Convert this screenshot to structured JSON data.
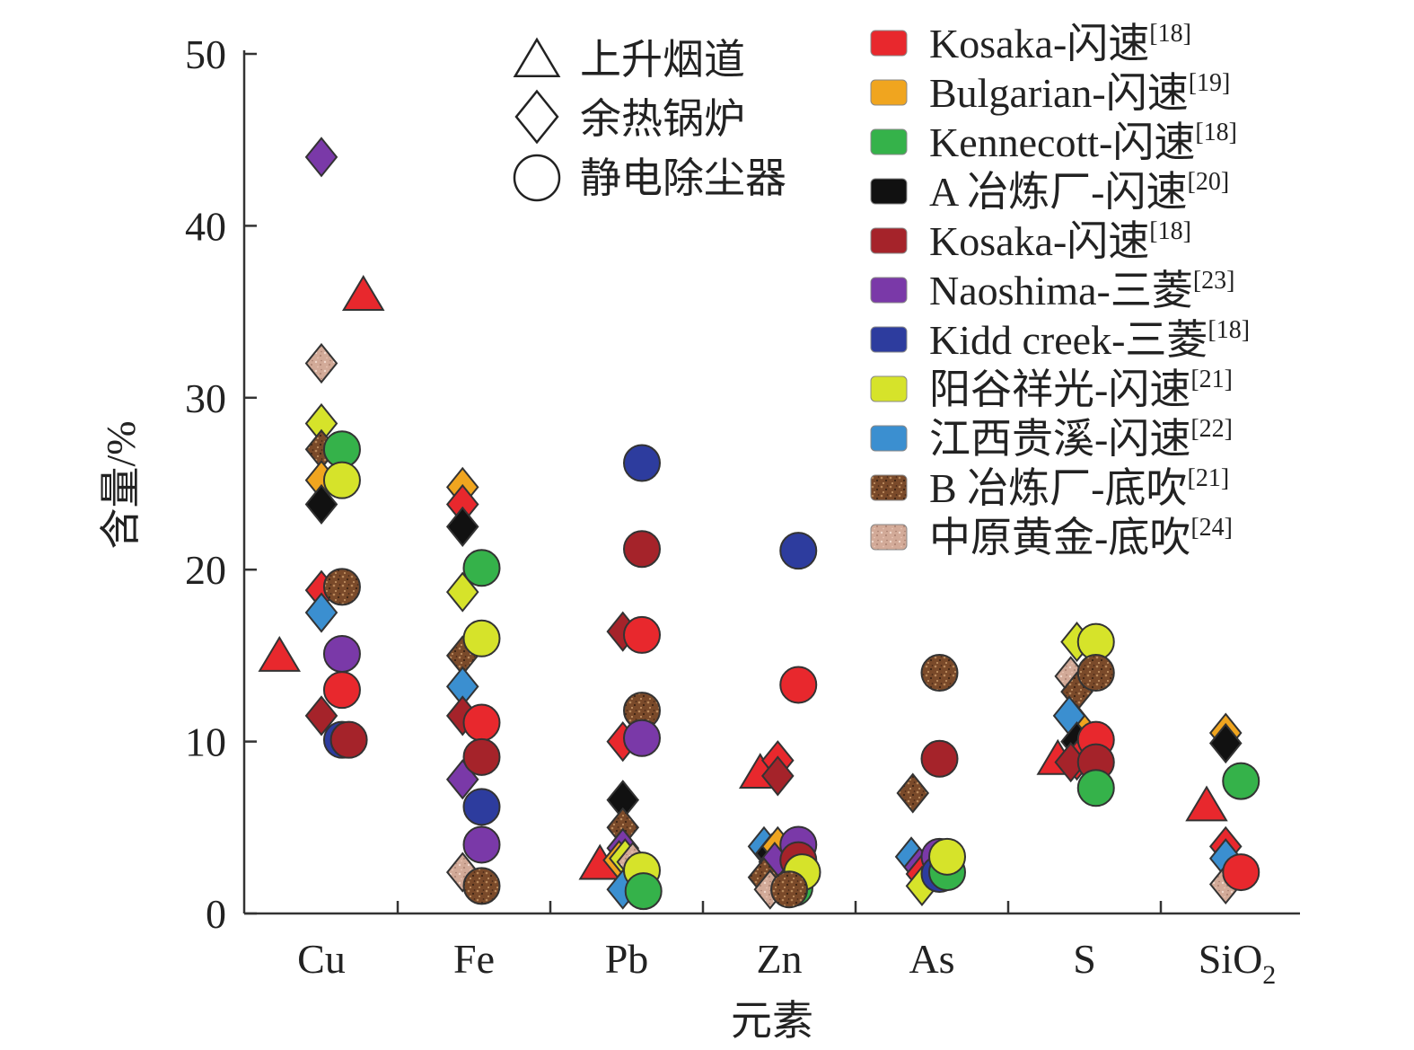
{
  "chart_data": {
    "type": "scatter",
    "title": "",
    "xlabel": "元素",
    "ylabel": "含量/%",
    "ylim": [
      0,
      50
    ],
    "yticks": [
      0,
      10,
      20,
      30,
      40,
      50
    ],
    "categories": [
      {
        "key": "Cu",
        "label": "Cu"
      },
      {
        "key": "Fe",
        "label": "Fe"
      },
      {
        "key": "Pb",
        "label": "Pb"
      },
      {
        "key": "Zn",
        "label": "Zn"
      },
      {
        "key": "As",
        "label": "As"
      },
      {
        "key": "S",
        "label": "S"
      },
      {
        "key": "SiO2",
        "label": "SiO",
        "sub": "2"
      }
    ],
    "shape_legend": [
      {
        "shape": "triangle",
        "label": "上升烟道"
      },
      {
        "shape": "diamond",
        "label": "余热锅炉"
      },
      {
        "shape": "circle",
        "label": "静电除尘器"
      }
    ],
    "series": [
      {
        "name": "Kosaka-闪速",
        "ref": "[18]",
        "color": "#e8282d"
      },
      {
        "name": "Bulgarian-闪速",
        "ref": "[19]",
        "color": "#f0a51f"
      },
      {
        "name": "Kennecott-闪速",
        "ref": "[18]",
        "color": "#35b24a"
      },
      {
        "name": "A 冶炼厂-闪速",
        "ref": "[20]",
        "color": "#111111"
      },
      {
        "name": "Kosaka-闪速",
        "ref": "[18]",
        "color": "#a5232a"
      },
      {
        "name": "Naoshima-三菱",
        "ref": "[23]",
        "color": "#7a39a8"
      },
      {
        "name": "Kidd creek-三菱",
        "ref": "[18]",
        "color": "#2d3c9e"
      },
      {
        "name": "阳谷祥光-闪速",
        "ref": "[21]",
        "color": "#d6e32a"
      },
      {
        "name": "江西贵溪-闪速",
        "ref": "[22]",
        "color": "#3b8fd0"
      },
      {
        "name": "B 冶炼厂-底吹",
        "ref": "[21]",
        "color": "#7a4a2a",
        "pattern": "speckle-brown"
      },
      {
        "name": "中原黄金-底吹",
        "ref": "[24]",
        "color": "#d2aa98",
        "pattern": "speckle-pink"
      }
    ],
    "points": [
      {
        "cat": "Cu",
        "dx": -0.55,
        "y": 15.0,
        "shape": "triangle",
        "s": 0
      },
      {
        "cat": "Cu",
        "dx": 0.55,
        "y": 36.0,
        "shape": "triangle",
        "s": 0
      },
      {
        "cat": "Cu",
        "dx": 0,
        "y": 44.0,
        "shape": "diamond",
        "s": 5
      },
      {
        "cat": "Cu",
        "dx": 0,
        "y": 32.0,
        "shape": "diamond",
        "s": 10
      },
      {
        "cat": "Cu",
        "dx": 0,
        "y": 28.5,
        "shape": "diamond",
        "s": 7
      },
      {
        "cat": "Cu",
        "dx": 0,
        "y": 27.0,
        "shape": "diamond",
        "s": 9
      },
      {
        "cat": "Cu",
        "dx": 0,
        "y": 25.2,
        "shape": "diamond",
        "s": 1
      },
      {
        "cat": "Cu",
        "dx": 0,
        "y": 23.8,
        "shape": "diamond",
        "s": 3
      },
      {
        "cat": "Cu",
        "dx": 0,
        "y": 18.8,
        "shape": "diamond",
        "s": 0
      },
      {
        "cat": "Cu",
        "dx": 0,
        "y": 17.5,
        "shape": "diamond",
        "s": 8
      },
      {
        "cat": "Cu",
        "dx": 0,
        "y": 11.5,
        "shape": "diamond",
        "s": 4
      },
      {
        "cat": "Cu",
        "dx": 0.27,
        "y": 27.0,
        "shape": "circle",
        "s": 2
      },
      {
        "cat": "Cu",
        "dx": 0.27,
        "y": 25.2,
        "shape": "circle",
        "s": 7
      },
      {
        "cat": "Cu",
        "dx": 0.27,
        "y": 19.0,
        "shape": "circle",
        "s": 9
      },
      {
        "cat": "Cu",
        "dx": 0.27,
        "y": 15.1,
        "shape": "circle",
        "s": 5
      },
      {
        "cat": "Cu",
        "dx": 0.27,
        "y": 13.0,
        "shape": "circle",
        "s": 0
      },
      {
        "cat": "Cu",
        "dx": 0.27,
        "y": 10.1,
        "shape": "circle",
        "s": 6
      },
      {
        "cat": "Cu",
        "dx": 0.36,
        "y": 10.1,
        "shape": "circle",
        "s": 4
      },
      {
        "cat": "Fe",
        "dx": -0.15,
        "y": 24.8,
        "shape": "diamond",
        "s": 1
      },
      {
        "cat": "Fe",
        "dx": -0.15,
        "y": 23.8,
        "shape": "diamond",
        "s": 0
      },
      {
        "cat": "Fe",
        "dx": -0.15,
        "y": 22.5,
        "shape": "diamond",
        "s": 3
      },
      {
        "cat": "Fe",
        "dx": -0.15,
        "y": 18.7,
        "shape": "diamond",
        "s": 7
      },
      {
        "cat": "Fe",
        "dx": -0.15,
        "y": 15.0,
        "shape": "diamond",
        "s": 9
      },
      {
        "cat": "Fe",
        "dx": -0.15,
        "y": 13.2,
        "shape": "diamond",
        "s": 8
      },
      {
        "cat": "Fe",
        "dx": -0.15,
        "y": 11.5,
        "shape": "diamond",
        "s": 4
      },
      {
        "cat": "Fe",
        "dx": -0.15,
        "y": 7.8,
        "shape": "diamond",
        "s": 5
      },
      {
        "cat": "Fe",
        "dx": -0.15,
        "y": 2.4,
        "shape": "diamond",
        "s": 10
      },
      {
        "cat": "Fe",
        "dx": 0.1,
        "y": 20.1,
        "shape": "circle",
        "s": 2
      },
      {
        "cat": "Fe",
        "dx": 0.1,
        "y": 16.0,
        "shape": "circle",
        "s": 7
      },
      {
        "cat": "Fe",
        "dx": 0.1,
        "y": 11.1,
        "shape": "circle",
        "s": 0
      },
      {
        "cat": "Fe",
        "dx": 0.1,
        "y": 9.1,
        "shape": "circle",
        "s": 4
      },
      {
        "cat": "Fe",
        "dx": 0.1,
        "y": 6.2,
        "shape": "circle",
        "s": 6
      },
      {
        "cat": "Fe",
        "dx": 0.1,
        "y": 4.0,
        "shape": "circle",
        "s": 5
      },
      {
        "cat": "Fe",
        "dx": 0.1,
        "y": 1.6,
        "shape": "circle",
        "s": 9
      },
      {
        "cat": "Pb",
        "dx": -0.35,
        "y": 2.9,
        "shape": "triangle",
        "s": 0
      },
      {
        "cat": "Pb",
        "dx": -0.05,
        "y": 16.4,
        "shape": "diamond",
        "s": 4
      },
      {
        "cat": "Pb",
        "dx": -0.05,
        "y": 10.0,
        "shape": "diamond",
        "s": 0
      },
      {
        "cat": "Pb",
        "dx": -0.05,
        "y": 6.6,
        "shape": "diamond",
        "s": 3
      },
      {
        "cat": "Pb",
        "dx": -0.05,
        "y": 5.0,
        "shape": "diamond",
        "s": 9
      },
      {
        "cat": "Pb",
        "dx": -0.05,
        "y": 3.8,
        "shape": "diamond",
        "s": 5
      },
      {
        "cat": "Pb",
        "dx": -0.1,
        "y": 3.1,
        "shape": "diamond",
        "s": 1
      },
      {
        "cat": "Pb",
        "dx": -0.02,
        "y": 3.2,
        "shape": "diamond",
        "s": 7
      },
      {
        "cat": "Pb",
        "dx": 0.08,
        "y": 3.0,
        "shape": "diamond",
        "s": 10
      },
      {
        "cat": "Pb",
        "dx": -0.05,
        "y": 1.4,
        "shape": "diamond",
        "s": 8
      },
      {
        "cat": "Pb",
        "dx": 0.2,
        "y": 26.2,
        "shape": "circle",
        "s": 6
      },
      {
        "cat": "Pb",
        "dx": 0.2,
        "y": 21.2,
        "shape": "circle",
        "s": 4
      },
      {
        "cat": "Pb",
        "dx": 0.2,
        "y": 16.2,
        "shape": "circle",
        "s": 0
      },
      {
        "cat": "Pb",
        "dx": 0.2,
        "y": 11.8,
        "shape": "circle",
        "s": 9
      },
      {
        "cat": "Pb",
        "dx": 0.2,
        "y": 10.2,
        "shape": "circle",
        "s": 5
      },
      {
        "cat": "Pb",
        "dx": 0.2,
        "y": 2.5,
        "shape": "circle",
        "s": 7
      },
      {
        "cat": "Pb",
        "dx": 0.22,
        "y": 1.3,
        "shape": "circle",
        "s": 2
      },
      {
        "cat": "Zn",
        "dx": -0.25,
        "y": 8.2,
        "shape": "triangle",
        "s": 0
      },
      {
        "cat": "Zn",
        "dx": -0.02,
        "y": 8.9,
        "shape": "diamond",
        "s": 0
      },
      {
        "cat": "Zn",
        "dx": -0.02,
        "y": 8.0,
        "shape": "diamond",
        "s": 4
      },
      {
        "cat": "Zn",
        "dx": -0.2,
        "y": 3.9,
        "shape": "diamond",
        "s": 8
      },
      {
        "cat": "Zn",
        "dx": -0.1,
        "y": 3.5,
        "shape": "diamond",
        "s": 3
      },
      {
        "cat": "Zn",
        "dx": -0.02,
        "y": 3.9,
        "shape": "diamond",
        "s": 1
      },
      {
        "cat": "Zn",
        "dx": -0.06,
        "y": 3.0,
        "shape": "diamond",
        "s": 5
      },
      {
        "cat": "Zn",
        "dx": -0.2,
        "y": 2.1,
        "shape": "diamond",
        "s": 9
      },
      {
        "cat": "Zn",
        "dx": -0.12,
        "y": 1.4,
        "shape": "diamond",
        "s": 10
      },
      {
        "cat": "Zn",
        "dx": 0.25,
        "y": 21.1,
        "shape": "circle",
        "s": 6
      },
      {
        "cat": "Zn",
        "dx": 0.25,
        "y": 13.3,
        "shape": "circle",
        "s": 0
      },
      {
        "cat": "Zn",
        "dx": 0.25,
        "y": 4.0,
        "shape": "circle",
        "s": 5
      },
      {
        "cat": "Zn",
        "dx": 0.25,
        "y": 3.1,
        "shape": "circle",
        "s": 4
      },
      {
        "cat": "Zn",
        "dx": 0.2,
        "y": 1.5,
        "shape": "circle",
        "s": 2
      },
      {
        "cat": "Zn",
        "dx": 0.3,
        "y": 2.4,
        "shape": "circle",
        "s": 7
      },
      {
        "cat": "Zn",
        "dx": 0.13,
        "y": 1.4,
        "shape": "circle",
        "s": 9
      },
      {
        "cat": "As",
        "dx": -0.25,
        "y": 7.0,
        "shape": "diamond",
        "s": 9
      },
      {
        "cat": "As",
        "dx": -0.27,
        "y": 3.3,
        "shape": "diamond",
        "s": 8
      },
      {
        "cat": "As",
        "dx": -0.16,
        "y": 2.7,
        "shape": "diamond",
        "s": 5
      },
      {
        "cat": "As",
        "dx": -0.13,
        "y": 2.3,
        "shape": "diamond",
        "s": 0
      },
      {
        "cat": "As",
        "dx": -0.13,
        "y": 1.6,
        "shape": "diamond",
        "s": 7
      },
      {
        "cat": "As",
        "dx": 0.1,
        "y": 14.0,
        "shape": "circle",
        "s": 9
      },
      {
        "cat": "As",
        "dx": 0.1,
        "y": 9.0,
        "shape": "circle",
        "s": 4
      },
      {
        "cat": "As",
        "dx": 0.1,
        "y": 3.3,
        "shape": "circle",
        "s": 5
      },
      {
        "cat": "As",
        "dx": 0.1,
        "y": 2.3,
        "shape": "circle",
        "s": 6
      },
      {
        "cat": "As",
        "dx": 0.2,
        "y": 2.4,
        "shape": "circle",
        "s": 2
      },
      {
        "cat": "As",
        "dx": 0.2,
        "y": 3.3,
        "shape": "circle",
        "s": 7
      },
      {
        "cat": "S",
        "dx": -0.35,
        "y": 9.0,
        "shape": "triangle",
        "s": 0
      },
      {
        "cat": "S",
        "dx": -0.1,
        "y": 15.8,
        "shape": "diamond",
        "s": 7
      },
      {
        "cat": "S",
        "dx": -0.18,
        "y": 13.8,
        "shape": "diamond",
        "s": 10
      },
      {
        "cat": "S",
        "dx": -0.1,
        "y": 12.9,
        "shape": "diamond",
        "s": 9
      },
      {
        "cat": "S",
        "dx": -0.1,
        "y": 11.0,
        "shape": "diamond",
        "s": 1
      },
      {
        "cat": "S",
        "dx": -0.2,
        "y": 11.5,
        "shape": "diamond",
        "s": 8
      },
      {
        "cat": "S",
        "dx": -0.1,
        "y": 10.0,
        "shape": "diamond",
        "s": 3
      },
      {
        "cat": "S",
        "dx": -0.1,
        "y": 8.9,
        "shape": "diamond",
        "s": 0
      },
      {
        "cat": "S",
        "dx": -0.18,
        "y": 8.8,
        "shape": "diamond",
        "s": 4
      },
      {
        "cat": "S",
        "dx": 0.15,
        "y": 15.8,
        "shape": "circle",
        "s": 7
      },
      {
        "cat": "S",
        "dx": 0.15,
        "y": 14.0,
        "shape": "circle",
        "s": 9
      },
      {
        "cat": "S",
        "dx": 0.15,
        "y": 10.1,
        "shape": "circle",
        "s": 0
      },
      {
        "cat": "S",
        "dx": 0.15,
        "y": 8.8,
        "shape": "circle",
        "s": 4
      },
      {
        "cat": "S",
        "dx": 0.15,
        "y": 7.3,
        "shape": "circle",
        "s": 2
      },
      {
        "cat": "SiO2",
        "dx": -0.4,
        "y": 6.3,
        "shape": "triangle",
        "s": 0
      },
      {
        "cat": "SiO2",
        "dx": -0.15,
        "y": 10.5,
        "shape": "diamond",
        "s": 1
      },
      {
        "cat": "SiO2",
        "dx": -0.15,
        "y": 9.9,
        "shape": "diamond",
        "s": 3
      },
      {
        "cat": "SiO2",
        "dx": -0.15,
        "y": 3.9,
        "shape": "diamond",
        "s": 0
      },
      {
        "cat": "SiO2",
        "dx": -0.15,
        "y": 3.2,
        "shape": "diamond",
        "s": 8
      },
      {
        "cat": "SiO2",
        "dx": -0.15,
        "y": 1.7,
        "shape": "diamond",
        "s": 10
      },
      {
        "cat": "SiO2",
        "dx": 0.05,
        "y": 2.4,
        "shape": "circle",
        "s": 0
      },
      {
        "cat": "SiO2",
        "dx": 0.05,
        "y": 7.7,
        "shape": "circle",
        "s": 2
      }
    ]
  }
}
